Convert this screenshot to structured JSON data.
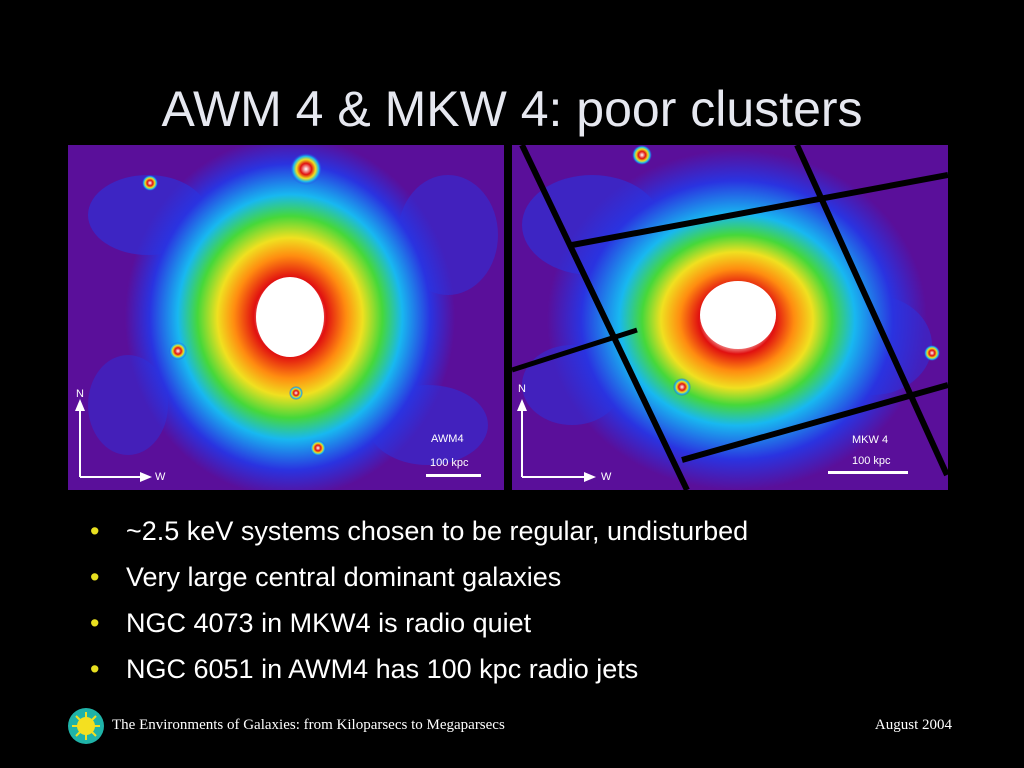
{
  "slide": {
    "title": "AWM 4 & MKW 4: poor clusters",
    "bullets": [
      "~2.5 keV systems chosen to be regular, undisturbed",
      "Very large central dominant galaxies",
      "NGC 4073 in MKW4 is radio quiet",
      "NGC 6051 in AWM4 has 100 kpc radio jets"
    ],
    "bullet_symbol": "•"
  },
  "images": {
    "left": {
      "cluster_label": "AWM4",
      "scale_label": "100 kpc",
      "north_label": "N",
      "west_label": "W"
    },
    "right": {
      "cluster_label": "MKW 4",
      "scale_label": "100 kpc",
      "north_label": "N",
      "west_label": "W"
    },
    "colormap": [
      "#5a0f9a",
      "#2a33e0",
      "#18b8f0",
      "#2ae0a0",
      "#46d83a",
      "#f0e020",
      "#ff8c10",
      "#e01010",
      "#ffffff"
    ]
  },
  "footer": {
    "left_text": "The Environments of Galaxies: from Kiloparsecs to Megaparsecs",
    "right_text": "August 2004",
    "logo_icon": "sun-logo-icon"
  }
}
